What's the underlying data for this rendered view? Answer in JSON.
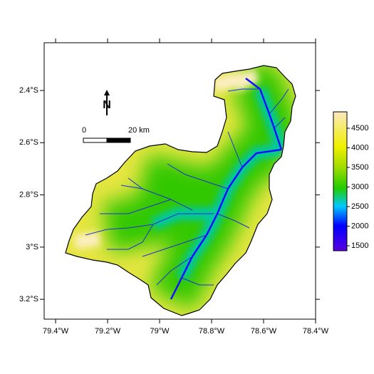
{
  "map": {
    "xlim": [
      -79.444,
      -78.4
    ],
    "ylim": [
      -3.276,
      -2.217
    ],
    "xticks": [
      {
        "value": -79.4,
        "label": "79.4°W"
      },
      {
        "value": -79.2,
        "label": "79.2°W"
      },
      {
        "value": -79.0,
        "label": "79°W"
      },
      {
        "value": -78.8,
        "label": "78.8°W"
      },
      {
        "value": -78.6,
        "label": "78.6°W"
      },
      {
        "value": -78.4,
        "label": "78.4°W"
      }
    ],
    "yticks": [
      {
        "value": -2.4,
        "label": "2.4°S"
      },
      {
        "value": -2.6,
        "label": "2.6°S"
      },
      {
        "value": -2.8,
        "label": "2.8°S"
      },
      {
        "value": -3.0,
        "label": "3°S"
      },
      {
        "value": -3.2,
        "label": "3.2°S"
      }
    ],
    "colorbar": {
      "lim": [
        1373,
        4918
      ],
      "ticks": [
        1500,
        2000,
        2500,
        3000,
        3500,
        4000,
        4500
      ]
    },
    "scale_bar": {
      "labels": [
        "0",
        "20 km"
      ]
    },
    "north_label": "N"
  }
}
